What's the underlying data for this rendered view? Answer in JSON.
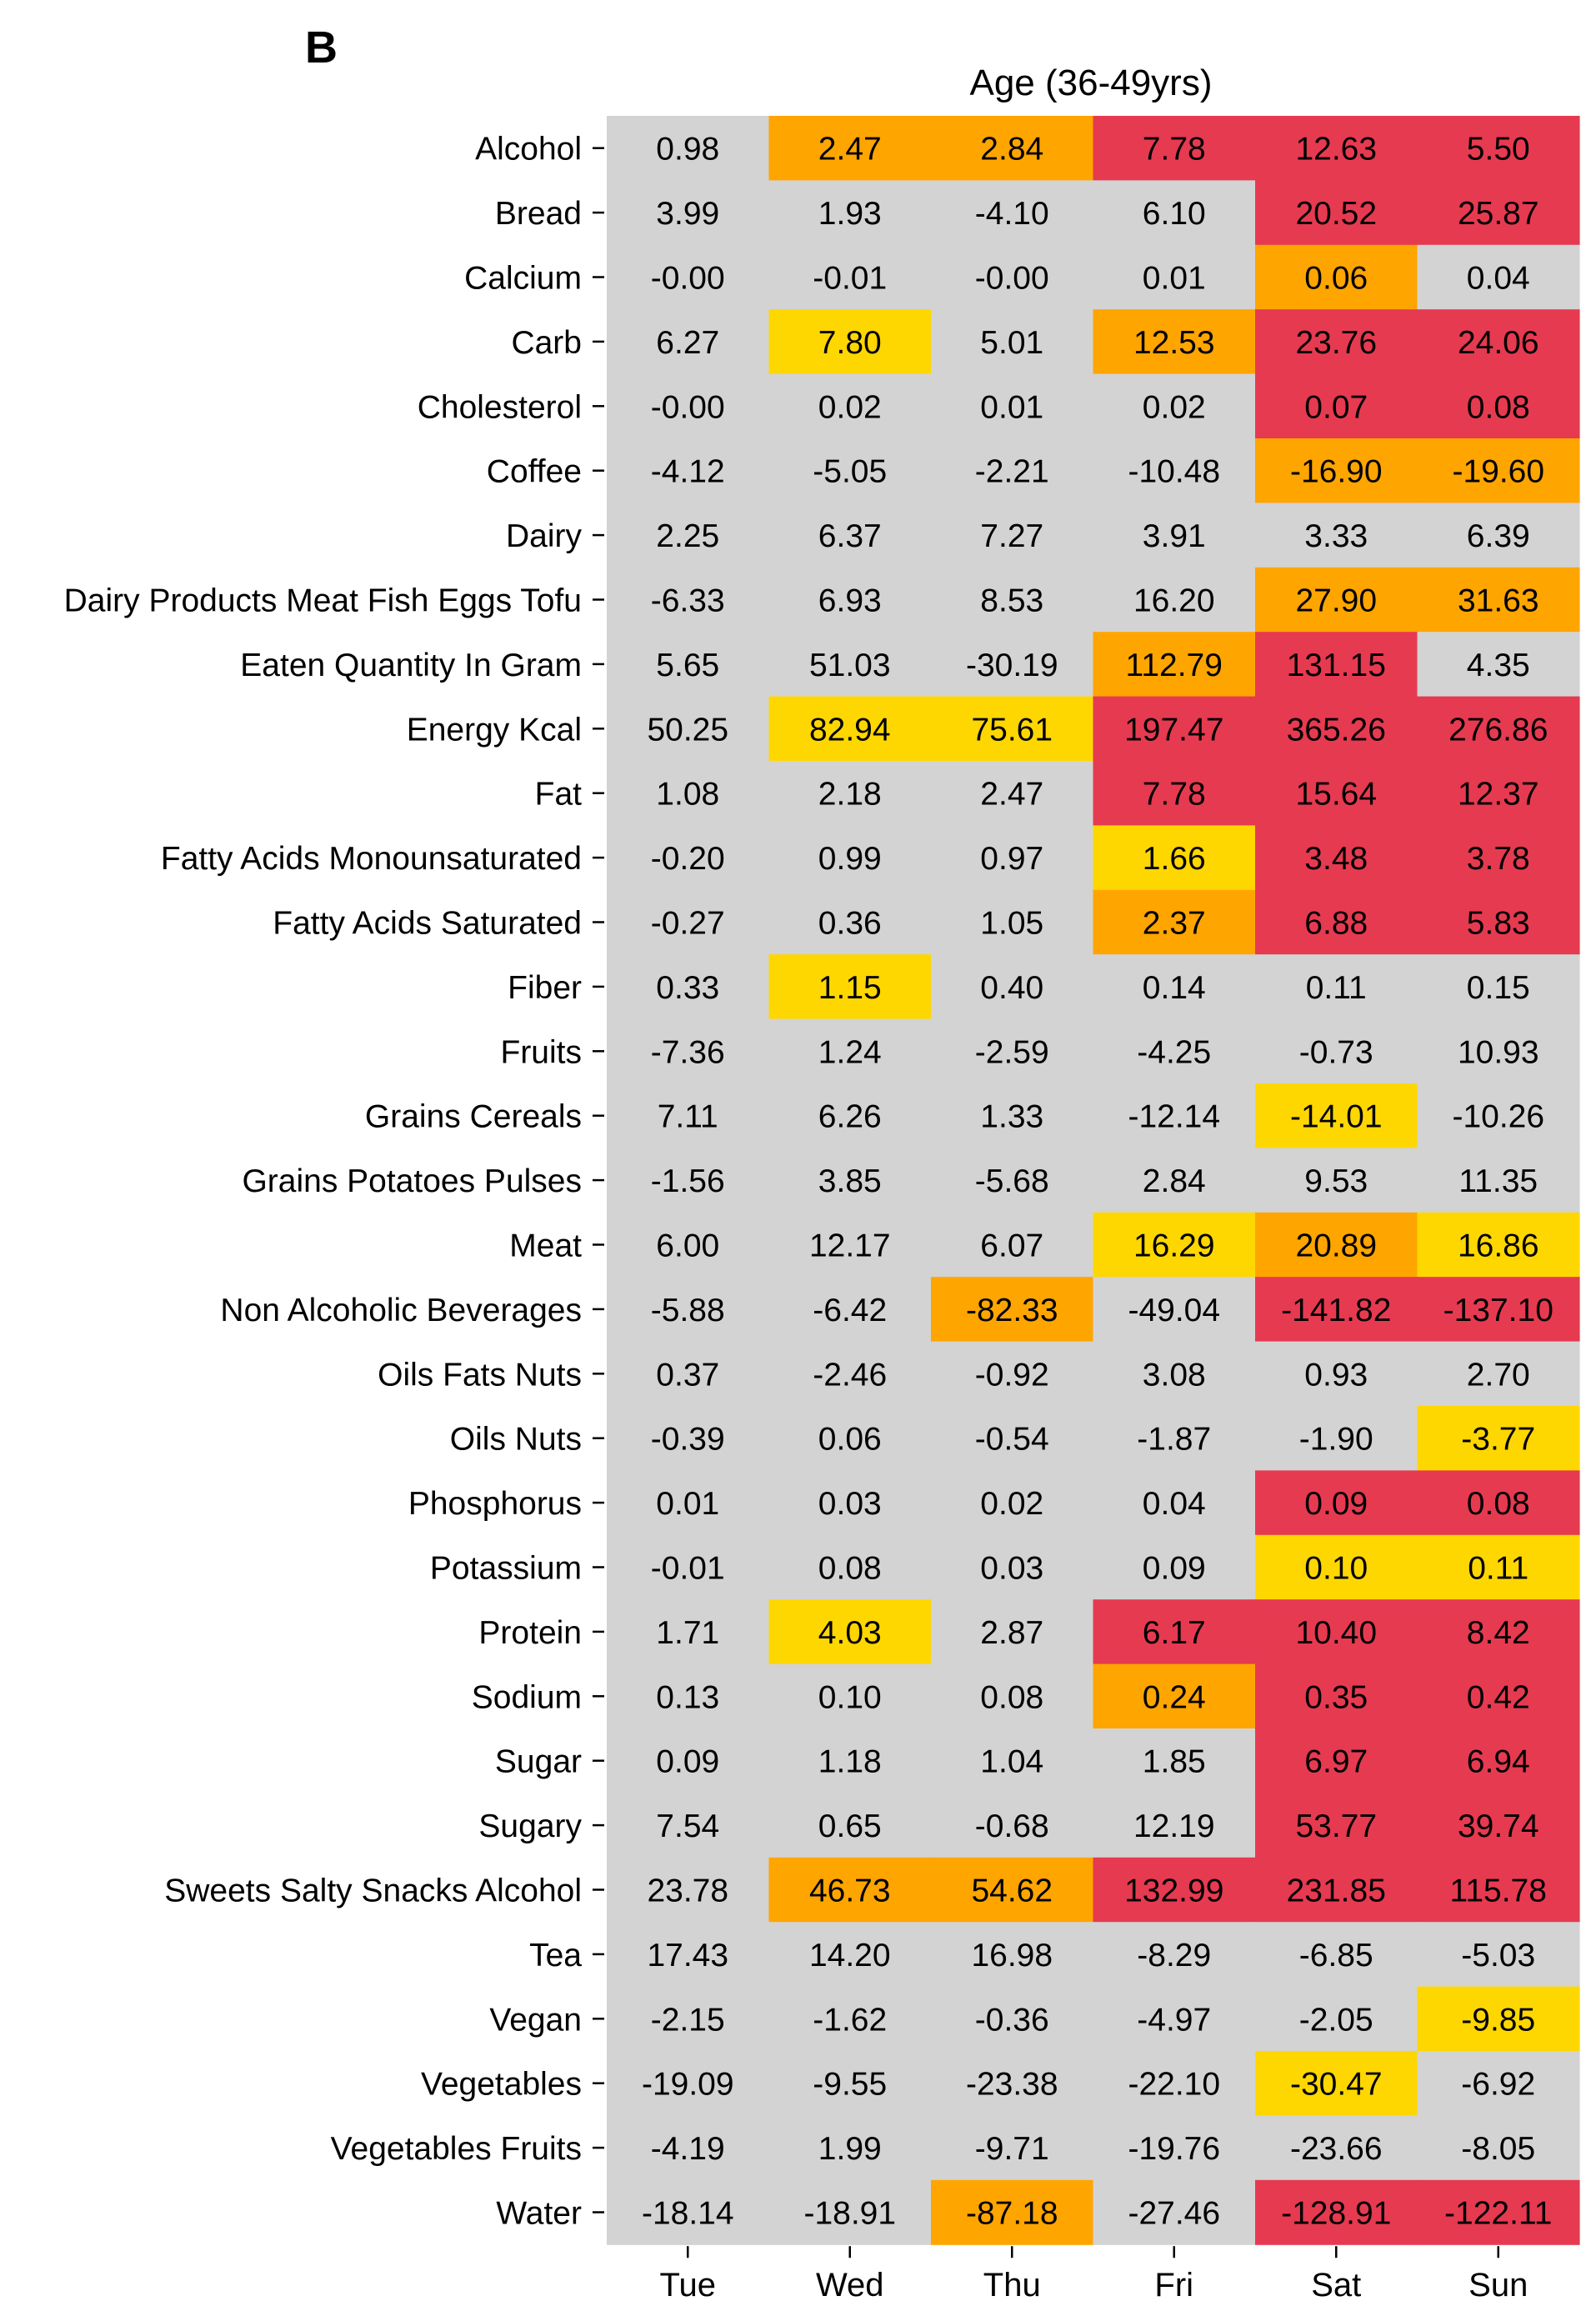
{
  "panel_label": "B",
  "chart_data": {
    "type": "heatmap",
    "title": "Age (36-49yrs)",
    "xlabel": "",
    "ylabel": "",
    "grid": false,
    "legend": "none",
    "x": [
      "Tue",
      "Wed",
      "Thu",
      "Fri",
      "Sat",
      "Sun"
    ],
    "y": [
      "Alcohol",
      "Bread",
      "Calcium",
      "Carb",
      "Cholesterol",
      "Coffee",
      "Dairy",
      "Dairy Products Meat Fish Eggs Tofu",
      "Eaten Quantity In Gram",
      "Energy Kcal",
      "Fat",
      "Fatty Acids Monounsaturated",
      "Fatty Acids Saturated",
      "Fiber",
      "Fruits",
      "Grains Cereals",
      "Grains Potatoes Pulses",
      "Meat",
      "Non Alcoholic Beverages",
      "Oils Fats Nuts",
      "Oils Nuts",
      "Phosphorus",
      "Potassium",
      "Protein",
      "Sodium",
      "Sugar",
      "Sugary",
      "Sweets Salty Snacks Alcohol",
      "Tea",
      "Vegan",
      "Vegetables",
      "Vegetables Fruits",
      "Water"
    ],
    "values": [
      [
        "0.98",
        "2.47",
        "2.84",
        "7.78",
        "12.63",
        "5.50"
      ],
      [
        "3.99",
        "1.93",
        "-4.10",
        "6.10",
        "20.52",
        "25.87"
      ],
      [
        "-0.00",
        "-0.01",
        "-0.00",
        "0.01",
        "0.06",
        "0.04"
      ],
      [
        "6.27",
        "7.80",
        "5.01",
        "12.53",
        "23.76",
        "24.06"
      ],
      [
        "-0.00",
        "0.02",
        "0.01",
        "0.02",
        "0.07",
        "0.08"
      ],
      [
        "-4.12",
        "-5.05",
        "-2.21",
        "-10.48",
        "-16.90",
        "-19.60"
      ],
      [
        "2.25",
        "6.37",
        "7.27",
        "3.91",
        "3.33",
        "6.39"
      ],
      [
        "-6.33",
        "6.93",
        "8.53",
        "16.20",
        "27.90",
        "31.63"
      ],
      [
        "5.65",
        "51.03",
        "-30.19",
        "112.79",
        "131.15",
        "4.35"
      ],
      [
        "50.25",
        "82.94",
        "75.61",
        "197.47",
        "365.26",
        "276.86"
      ],
      [
        "1.08",
        "2.18",
        "2.47",
        "7.78",
        "15.64",
        "12.37"
      ],
      [
        "-0.20",
        "0.99",
        "0.97",
        "1.66",
        "3.48",
        "3.78"
      ],
      [
        "-0.27",
        "0.36",
        "1.05",
        "2.37",
        "6.88",
        "5.83"
      ],
      [
        "0.33",
        "1.15",
        "0.40",
        "0.14",
        "0.11",
        "0.15"
      ],
      [
        "-7.36",
        "1.24",
        "-2.59",
        "-4.25",
        "-0.73",
        "10.93"
      ],
      [
        "7.11",
        "6.26",
        "1.33",
        "-12.14",
        "-14.01",
        "-10.26"
      ],
      [
        "-1.56",
        "3.85",
        "-5.68",
        "2.84",
        "9.53",
        "11.35"
      ],
      [
        "6.00",
        "12.17",
        "6.07",
        "16.29",
        "20.89",
        "16.86"
      ],
      [
        "-5.88",
        "-6.42",
        "-82.33",
        "-49.04",
        "-141.82",
        "-137.10"
      ],
      [
        "0.37",
        "-2.46",
        "-0.92",
        "3.08",
        "0.93",
        "2.70"
      ],
      [
        "-0.39",
        "0.06",
        "-0.54",
        "-1.87",
        "-1.90",
        "-3.77"
      ],
      [
        "0.01",
        "0.03",
        "0.02",
        "0.04",
        "0.09",
        "0.08"
      ],
      [
        "-0.01",
        "0.08",
        "0.03",
        "0.09",
        "0.10",
        "0.11"
      ],
      [
        "1.71",
        "4.03",
        "2.87",
        "6.17",
        "10.40",
        "8.42"
      ],
      [
        "0.13",
        "0.10",
        "0.08",
        "0.24",
        "0.35",
        "0.42"
      ],
      [
        "0.09",
        "1.18",
        "1.04",
        "1.85",
        "6.97",
        "6.94"
      ],
      [
        "7.54",
        "0.65",
        "-0.68",
        "12.19",
        "53.77",
        "39.74"
      ],
      [
        "23.78",
        "46.73",
        "54.62",
        "132.99",
        "231.85",
        "115.78"
      ],
      [
        "17.43",
        "14.20",
        "16.98",
        "-8.29",
        "-6.85",
        "-5.03"
      ],
      [
        "-2.15",
        "-1.62",
        "-0.36",
        "-4.97",
        "-2.05",
        "-9.85"
      ],
      [
        "-19.09",
        "-9.55",
        "-23.38",
        "-22.10",
        "-30.47",
        "-6.92"
      ],
      [
        "-4.19",
        "1.99",
        "-9.71",
        "-19.76",
        "-23.66",
        "-8.05"
      ],
      [
        "-18.14",
        "-18.91",
        "-87.18",
        "-27.46",
        "-128.91",
        "-122.11"
      ]
    ],
    "categories_color": [
      [
        "grey",
        "orange",
        "orange",
        "red",
        "red",
        "red"
      ],
      [
        "grey",
        "grey",
        "grey",
        "grey",
        "red",
        "red"
      ],
      [
        "grey",
        "grey",
        "grey",
        "grey",
        "orange",
        "grey"
      ],
      [
        "grey",
        "yellow",
        "grey",
        "orange",
        "red",
        "red"
      ],
      [
        "grey",
        "grey",
        "grey",
        "grey",
        "red",
        "red"
      ],
      [
        "grey",
        "grey",
        "grey",
        "grey",
        "orange",
        "orange"
      ],
      [
        "grey",
        "grey",
        "grey",
        "grey",
        "grey",
        "grey"
      ],
      [
        "grey",
        "grey",
        "grey",
        "grey",
        "orange",
        "orange"
      ],
      [
        "grey",
        "grey",
        "grey",
        "orange",
        "red",
        "grey"
      ],
      [
        "grey",
        "yellow",
        "yellow",
        "red",
        "red",
        "red"
      ],
      [
        "grey",
        "grey",
        "grey",
        "red",
        "red",
        "red"
      ],
      [
        "grey",
        "grey",
        "grey",
        "yellow",
        "red",
        "red"
      ],
      [
        "grey",
        "grey",
        "grey",
        "orange",
        "red",
        "red"
      ],
      [
        "grey",
        "yellow",
        "grey",
        "grey",
        "grey",
        "grey"
      ],
      [
        "grey",
        "grey",
        "grey",
        "grey",
        "grey",
        "grey"
      ],
      [
        "grey",
        "grey",
        "grey",
        "grey",
        "yellow",
        "grey"
      ],
      [
        "grey",
        "grey",
        "grey",
        "grey",
        "grey",
        "grey"
      ],
      [
        "grey",
        "grey",
        "grey",
        "yellow",
        "orange",
        "yellow"
      ],
      [
        "grey",
        "grey",
        "orange",
        "grey",
        "red",
        "red"
      ],
      [
        "grey",
        "grey",
        "grey",
        "grey",
        "grey",
        "grey"
      ],
      [
        "grey",
        "grey",
        "grey",
        "grey",
        "grey",
        "yellow"
      ],
      [
        "grey",
        "grey",
        "grey",
        "grey",
        "red",
        "red"
      ],
      [
        "grey",
        "grey",
        "grey",
        "grey",
        "yellow",
        "yellow"
      ],
      [
        "grey",
        "yellow",
        "grey",
        "red",
        "red",
        "red"
      ],
      [
        "grey",
        "grey",
        "grey",
        "orange",
        "red",
        "red"
      ],
      [
        "grey",
        "grey",
        "grey",
        "grey",
        "red",
        "red"
      ],
      [
        "grey",
        "grey",
        "grey",
        "grey",
        "red",
        "red"
      ],
      [
        "grey",
        "orange",
        "orange",
        "red",
        "red",
        "red"
      ],
      [
        "grey",
        "grey",
        "grey",
        "grey",
        "grey",
        "grey"
      ],
      [
        "grey",
        "grey",
        "grey",
        "grey",
        "grey",
        "yellow"
      ],
      [
        "grey",
        "grey",
        "grey",
        "grey",
        "yellow",
        "grey"
      ],
      [
        "grey",
        "grey",
        "grey",
        "grey",
        "grey",
        "grey"
      ],
      [
        "grey",
        "grey",
        "orange",
        "grey",
        "red",
        "red"
      ]
    ],
    "colors": {
      "grey": "#d3d3d3",
      "yellow": "#ffd700",
      "orange": "#ffa500",
      "red": "#e63a50",
      "text": "#000000"
    }
  }
}
